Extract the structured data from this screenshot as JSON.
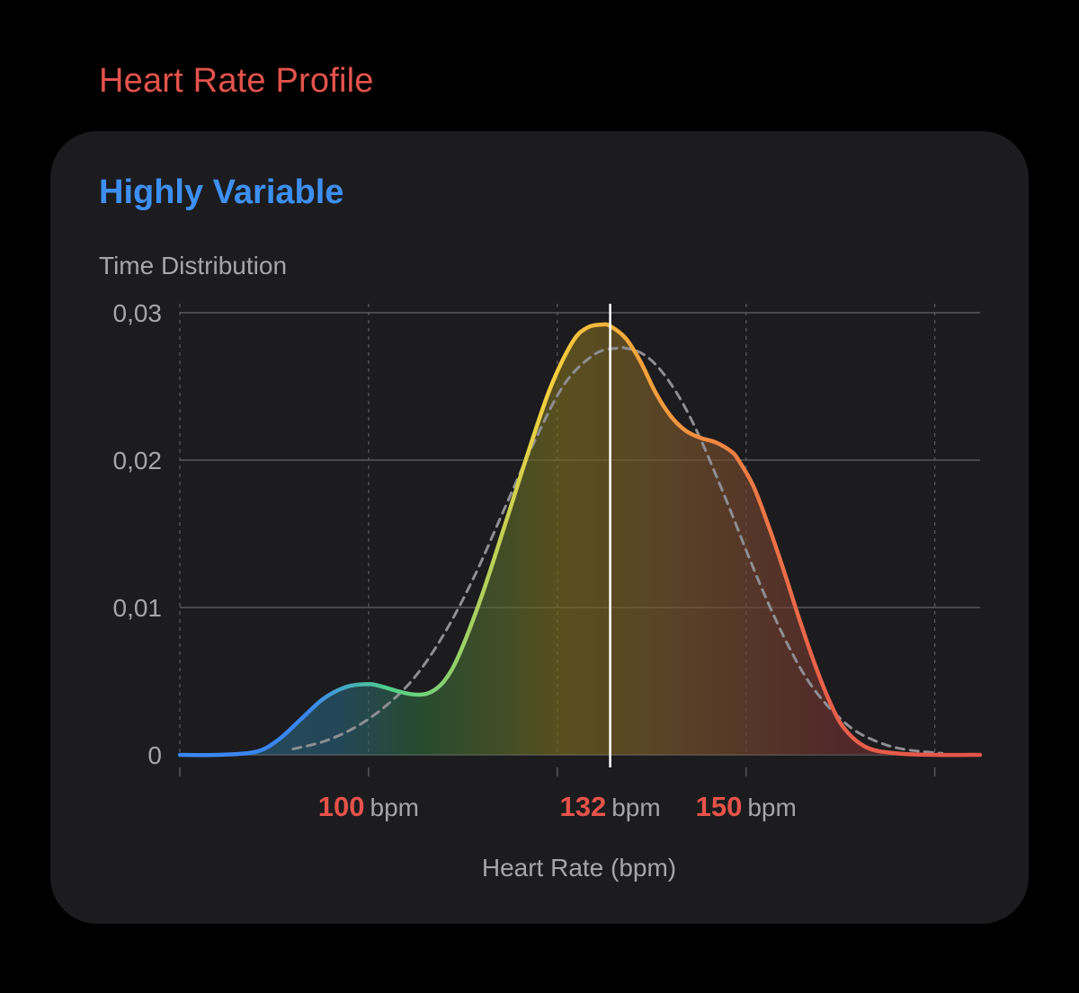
{
  "header": {
    "title": "Heart Rate Profile"
  },
  "card": {
    "title": "Highly Variable",
    "subtitle": "Time Distribution"
  },
  "colors": {
    "title": "#e5534b",
    "accent_blue": "#3d8ff2",
    "card_bg": "#1c1c1e",
    "grid": "#58585c",
    "text_secondary": "#a5a5aa",
    "marker": "#ffffff",
    "reference_curve": "#8e8e93",
    "gradient_stops": [
      "#3a86f0",
      "#4fd08a",
      "#f4d03f",
      "#f5a83b",
      "#e5534b"
    ]
  },
  "chart_data": {
    "type": "area",
    "xlabel": "Heart Rate (bpm)",
    "ylabel": "",
    "xlim": [
      75,
      181
    ],
    "ylim": [
      0,
      0.03
    ],
    "y_ticks": [
      "0",
      "0,01",
      "0,02",
      "0,03"
    ],
    "y_tick_values": [
      0,
      0.01,
      0.02,
      0.03
    ],
    "x_grid_values": [
      75,
      100,
      125,
      150,
      175
    ],
    "highlighted_x": [
      {
        "value": "100",
        "unit": "bpm",
        "x": 100
      },
      {
        "value": "132",
        "unit": "bpm",
        "x": 132
      },
      {
        "value": "150",
        "unit": "bpm",
        "x": 150
      }
    ],
    "marker_x": 132,
    "grid": true,
    "series": [
      {
        "x": [
          75,
          80,
          85,
          88,
          91,
          94,
          97,
          100,
          102,
          104,
          106,
          108,
          110,
          112,
          115,
          118,
          121,
          124,
          127,
          129,
          131,
          132,
          134,
          136,
          138,
          140,
          142,
          144,
          146,
          148,
          149,
          151,
          153,
          155,
          157,
          159,
          161,
          163,
          166,
          170,
          175,
          181
        ],
        "values": [
          0,
          0,
          0.0002,
          0.001,
          0.0024,
          0.0038,
          0.0046,
          0.0048,
          0.0046,
          0.0043,
          0.0041,
          0.0042,
          0.005,
          0.0068,
          0.0108,
          0.0155,
          0.0203,
          0.0248,
          0.028,
          0.029,
          0.0292,
          0.0291,
          0.0283,
          0.0267,
          0.0246,
          0.023,
          0.022,
          0.0215,
          0.0212,
          0.0206,
          0.02,
          0.0182,
          0.0155,
          0.0125,
          0.0093,
          0.0063,
          0.0037,
          0.0018,
          0.0005,
          0.0001,
          0,
          0
        ]
      },
      {
        "x": [
          90,
          94,
          98,
          102,
          106,
          110,
          114,
          118,
          122,
          126,
          130,
          133,
          134,
          136,
          138,
          140,
          142,
          144,
          146,
          148,
          150,
          152,
          154,
          156,
          158,
          160,
          162,
          164,
          166,
          169,
          172,
          176
        ],
        "values": [
          0.0004,
          0.0009,
          0.0018,
          0.0032,
          0.0052,
          0.0082,
          0.0121,
          0.0167,
          0.0213,
          0.0252,
          0.0272,
          0.0276,
          0.0276,
          0.0273,
          0.0265,
          0.0252,
          0.0235,
          0.0214,
          0.019,
          0.0165,
          0.0139,
          0.0114,
          0.0091,
          0.007,
          0.0052,
          0.0038,
          0.0027,
          0.0018,
          0.0012,
          0.0006,
          0.0003,
          0.0001
        ]
      }
    ]
  }
}
